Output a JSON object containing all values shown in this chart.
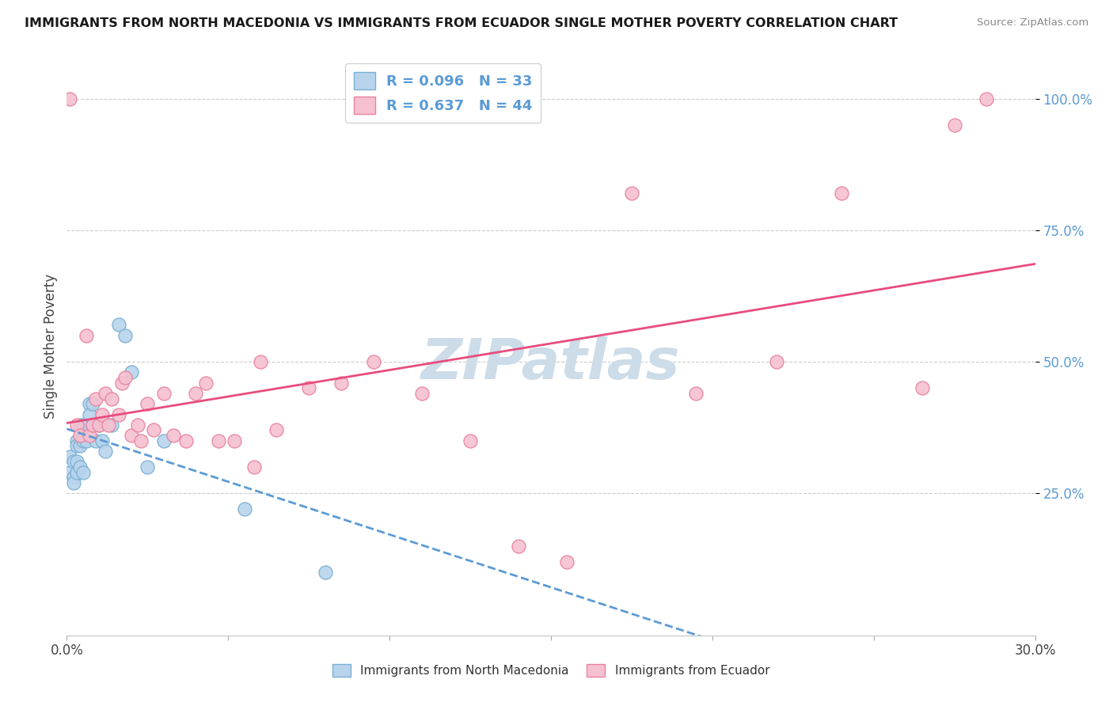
{
  "title": "IMMIGRANTS FROM NORTH MACEDONIA VS IMMIGRANTS FROM ECUADOR SINGLE MOTHER POVERTY CORRELATION CHART",
  "source": "Source: ZipAtlas.com",
  "ylabel": "Single Mother Poverty",
  "y_ticks": [
    0.25,
    0.5,
    0.75,
    1.0
  ],
  "y_tick_labels": [
    "25.0%",
    "50.0%",
    "75.0%",
    "100.0%"
  ],
  "xlim": [
    0.0,
    0.3
  ],
  "ylim": [
    -0.02,
    1.08
  ],
  "series1_label": "Immigrants from North Macedonia",
  "series1_color": "#b8d4ec",
  "series1_edge_color": "#7aafd4",
  "series1_R": 0.096,
  "series1_N": 33,
  "series1_line_color": "#5b9bd5",
  "series1_line_style": "--",
  "series2_label": "Immigrants from Ecuador",
  "series2_color": "#f5c0d0",
  "series2_edge_color": "#e8839e",
  "series2_R": 0.637,
  "series2_N": 44,
  "series2_line_color": "#e84c7d",
  "series2_line_style": "-",
  "legend_color": "#5b9bd5",
  "watermark_color": "#ccdce8",
  "background_color": "#ffffff",
  "grid_color": "#cccccc",
  "grid_style": "--",
  "series1_x": [
    0.001,
    0.001,
    0.002,
    0.002,
    0.002,
    0.003,
    0.003,
    0.003,
    0.003,
    0.004,
    0.004,
    0.004,
    0.005,
    0.005,
    0.005,
    0.006,
    0.006,
    0.007,
    0.007,
    0.008,
    0.008,
    0.009,
    0.01,
    0.011,
    0.012,
    0.014,
    0.016,
    0.018,
    0.02,
    0.025,
    0.03,
    0.055,
    0.08
  ],
  "series1_y": [
    0.32,
    0.29,
    0.31,
    0.28,
    0.27,
    0.35,
    0.34,
    0.31,
    0.29,
    0.38,
    0.34,
    0.3,
    0.38,
    0.35,
    0.29,
    0.38,
    0.35,
    0.42,
    0.4,
    0.42,
    0.38,
    0.35,
    0.38,
    0.35,
    0.33,
    0.38,
    0.57,
    0.55,
    0.48,
    0.3,
    0.35,
    0.22,
    0.1
  ],
  "series2_x": [
    0.001,
    0.003,
    0.004,
    0.006,
    0.007,
    0.008,
    0.009,
    0.01,
    0.011,
    0.012,
    0.013,
    0.014,
    0.016,
    0.017,
    0.018,
    0.02,
    0.022,
    0.023,
    0.025,
    0.027,
    0.03,
    0.033,
    0.037,
    0.04,
    0.043,
    0.047,
    0.052,
    0.058,
    0.06,
    0.065,
    0.075,
    0.085,
    0.095,
    0.11,
    0.125,
    0.14,
    0.155,
    0.175,
    0.195,
    0.22,
    0.24,
    0.265,
    0.275,
    0.285
  ],
  "series2_y": [
    1.0,
    0.38,
    0.36,
    0.55,
    0.36,
    0.38,
    0.43,
    0.38,
    0.4,
    0.44,
    0.38,
    0.43,
    0.4,
    0.46,
    0.47,
    0.36,
    0.38,
    0.35,
    0.42,
    0.37,
    0.44,
    0.36,
    0.35,
    0.44,
    0.46,
    0.35,
    0.35,
    0.3,
    0.5,
    0.37,
    0.45,
    0.46,
    0.5,
    0.44,
    0.35,
    0.15,
    0.12,
    0.82,
    0.44,
    0.5,
    0.82,
    0.45,
    0.95,
    1.0
  ]
}
